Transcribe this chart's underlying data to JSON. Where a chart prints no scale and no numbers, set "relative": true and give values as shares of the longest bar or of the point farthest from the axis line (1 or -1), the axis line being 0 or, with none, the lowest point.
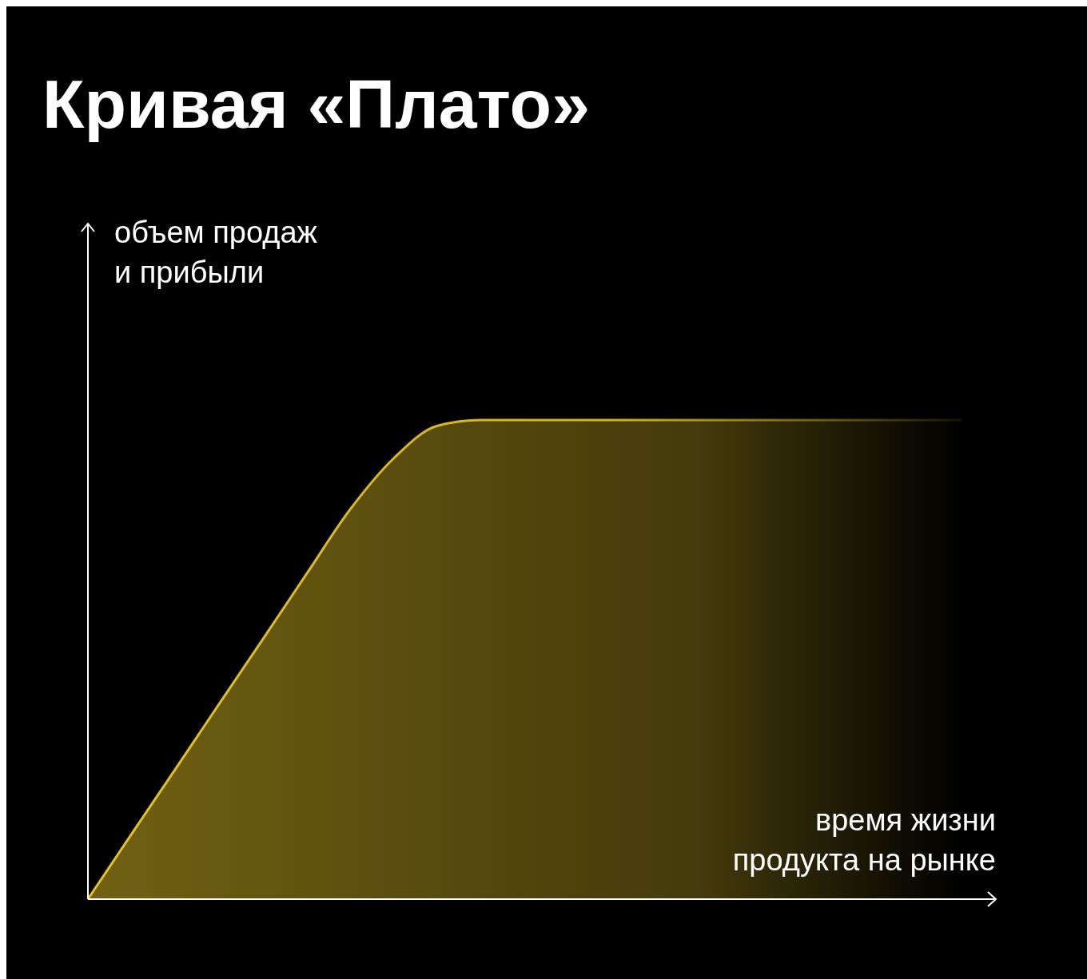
{
  "chart_data": {
    "type": "area",
    "title": "Кривая «Плато»",
    "xlabel": "время жизни\nпродукта на рынке",
    "ylabel": "объем продаж\nи прибыли",
    "relative": true,
    "categories": [
      null,
      null,
      null,
      null,
      null,
      null,
      null,
      null,
      null,
      null,
      null,
      null,
      null,
      null,
      null,
      null,
      null,
      null,
      null,
      null,
      null
    ],
    "series": [
      {
        "color": "#e3c224",
        "values": [
          0,
          0.136,
          0.271,
          0.407,
          0.542,
          0.678,
          0.813,
          0.92,
          0.988,
          1,
          1,
          1,
          1,
          1,
          1,
          1,
          1,
          1,
          1,
          1,
          1
        ]
      }
    ]
  }
}
